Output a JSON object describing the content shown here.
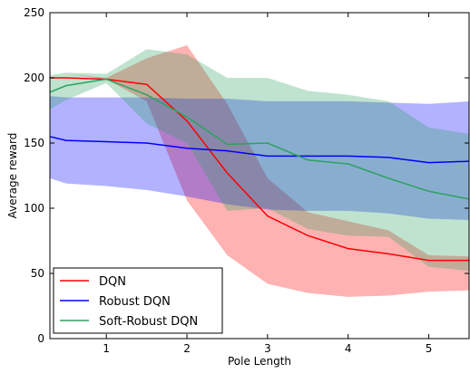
{
  "chart_data": {
    "type": "line",
    "xlabel": "Pole Length",
    "ylabel": "Average reward",
    "xlim": [
      0.3,
      5.5
    ],
    "ylim": [
      0,
      250
    ],
    "xticks": [
      "1",
      "2",
      "3",
      "4",
      "5"
    ],
    "yticks": [
      "0",
      "50",
      "100",
      "150",
      "200",
      "250"
    ],
    "grid": false,
    "legend_position": "bottom-left",
    "series": [
      {
        "name": "DQN",
        "color": "#ff0000",
        "band_color": "#ff0000",
        "x": [
          0.3,
          0.5,
          1.0,
          1.5,
          2.0,
          2.5,
          3.0,
          3.5,
          4.0,
          4.5,
          5.0,
          5.5
        ],
        "y": [
          200,
          200,
          199,
          195,
          167,
          127,
          94,
          79,
          69,
          65,
          60,
          60
        ],
        "lower": [
          200,
          203,
          199,
          182,
          106,
          64,
          42,
          35,
          32,
          33,
          36,
          37
        ],
        "upper": [
          200,
          203,
          200,
          215,
          225,
          180,
          123,
          97,
          90,
          83,
          64,
          63
        ]
      },
      {
        "name": "Robust DQN",
        "color": "#0000ff",
        "band_color": "#0000ff",
        "x": [
          0.3,
          0.5,
          1.0,
          1.5,
          2.0,
          2.5,
          3.0,
          3.5,
          4.0,
          4.5,
          5.0,
          5.5
        ],
        "y": [
          155,
          152,
          151,
          150,
          146,
          144,
          140,
          140,
          140,
          139,
          135,
          136
        ],
        "lower": [
          123,
          119,
          117,
          114,
          109,
          103,
          99,
          98,
          98,
          96,
          92,
          91
        ],
        "upper": [
          186,
          185,
          185,
          185,
          184,
          184,
          182,
          182,
          182,
          181,
          180,
          182
        ]
      },
      {
        "name": "Soft-Robust DQN",
        "color": "#2ca25f",
        "band_color": "#2ca25f",
        "x": [
          0.3,
          0.5,
          1.0,
          1.5,
          2.0,
          2.5,
          3.0,
          3.5,
          4.0,
          4.5,
          5.0,
          5.5
        ],
        "y": [
          189,
          194,
          199,
          187,
          170,
          149,
          150,
          137,
          134,
          123,
          113,
          107
        ],
        "lower": [
          176,
          183,
          196,
          165,
          150,
          98,
          100,
          84,
          79,
          78,
          55,
          52
        ],
        "upper": [
          202,
          204,
          203,
          222,
          218,
          200,
          200,
          190,
          187,
          182,
          162,
          157
        ]
      }
    ]
  }
}
